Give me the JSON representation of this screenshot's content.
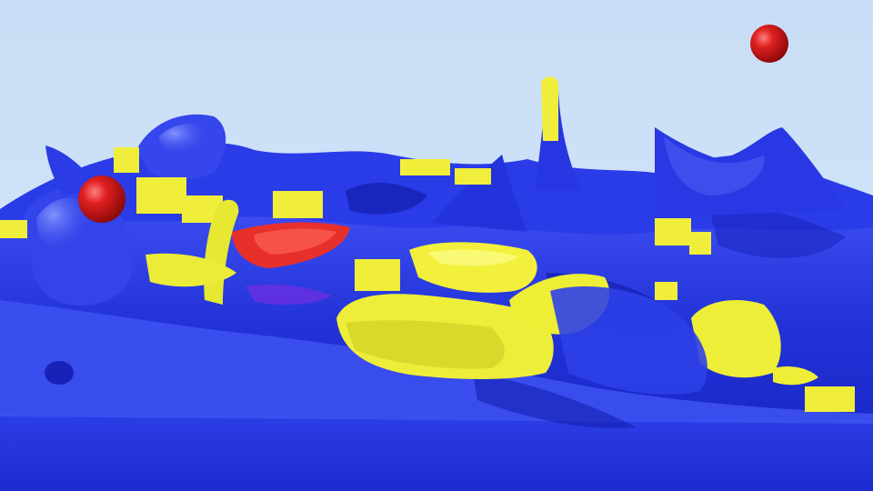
{
  "scene": {
    "kind": "3d-render",
    "subject": "fluid-surface-simulation",
    "colors": {
      "sky": "#cfe3f8",
      "fluid_blue": "#2a3be8",
      "fluid_dark": "#1420b0",
      "fluid_light": "#5a6df5",
      "highlight_yellow": "#f0ee3a",
      "hot_red": "#e8302a",
      "sphere_red": "#d81818"
    },
    "objects": [
      {
        "name": "fluid-surface",
        "color": "blue"
      },
      {
        "name": "yellow-patches",
        "color": "yellow"
      },
      {
        "name": "red-patch",
        "color": "red"
      },
      {
        "name": "red-sphere-left",
        "color": "red"
      },
      {
        "name": "red-sphere-right",
        "color": "red"
      }
    ]
  }
}
